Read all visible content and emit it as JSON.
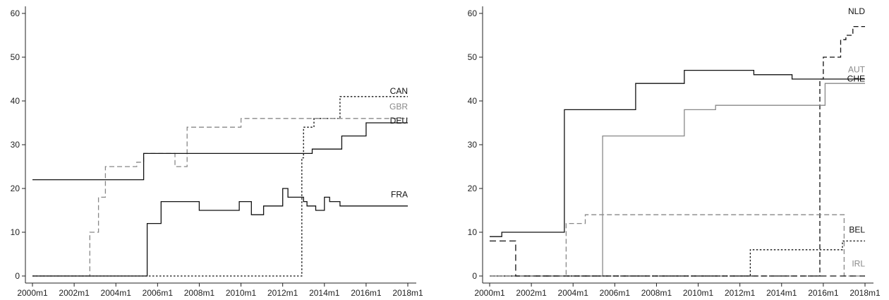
{
  "chart_data": [
    {
      "type": "line",
      "step": true,
      "title": "",
      "xlabel": "",
      "ylabel": "",
      "xlim": [
        "2000m1",
        "2018m1"
      ],
      "ylim": [
        0,
        60
      ],
      "x_ticks": [
        "2000m1",
        "2002m1",
        "2004m1",
        "2006m1",
        "2008m1",
        "2010m1",
        "2012m1",
        "2014m1",
        "2016m1",
        "2018m1"
      ],
      "y_ticks": [
        0,
        10,
        20,
        30,
        40,
        50,
        60
      ],
      "grid": false,
      "legend": "none",
      "series": [
        {
          "name": "CAN",
          "color": "#111111",
          "dash": "dotted",
          "points": [
            [
              "2000m1",
              0
            ],
            [
              "2012m12",
              0
            ],
            [
              "2012m12",
              27
            ],
            [
              "2013m1",
              27
            ],
            [
              "2013m1",
              34
            ],
            [
              "2013m7",
              34
            ],
            [
              "2013m7",
              36
            ],
            [
              "2014m10",
              36
            ],
            [
              "2014m10",
              41
            ],
            [
              "2018m1",
              41
            ]
          ]
        },
        {
          "name": "GBR",
          "color": "#888888",
          "dash": "dashed",
          "points": [
            [
              "2000m1",
              0
            ],
            [
              "2002m10",
              0
            ],
            [
              "2002m10",
              10
            ],
            [
              "2003m3",
              10
            ],
            [
              "2003m3",
              18
            ],
            [
              "2003m7",
              18
            ],
            [
              "2003m7",
              25
            ],
            [
              "2005m1",
              25
            ],
            [
              "2005m1",
              26
            ],
            [
              "2005m5",
              26
            ],
            [
              "2005m5",
              28
            ],
            [
              "2006m9",
              28
            ],
            [
              "2006m9",
              28
            ],
            [
              "2006m11",
              28
            ],
            [
              "2006m11",
              25
            ],
            [
              "2007m6",
              25
            ],
            [
              "2007m6",
              34
            ],
            [
              "2010m1",
              34
            ],
            [
              "2010m1",
              36
            ],
            [
              "2018m1",
              36
            ]
          ]
        },
        {
          "name": "DEU",
          "color": "#111111",
          "dash": "solid",
          "points": [
            [
              "2000m1",
              22
            ],
            [
              "2005m5",
              22
            ],
            [
              "2005m5",
              28
            ],
            [
              "2013m1",
              28
            ],
            [
              "2013m1",
              28
            ],
            [
              "2013m6",
              28
            ],
            [
              "2013m6",
              29
            ],
            [
              "2014m11",
              29
            ],
            [
              "2014m11",
              32
            ],
            [
              "2016m1",
              32
            ],
            [
              "2016m1",
              35
            ],
            [
              "2018m1",
              35
            ]
          ]
        },
        {
          "name": "FRA",
          "color": "#111111",
          "dash": "solid",
          "points": [
            [
              "2000m1",
              0
            ],
            [
              "2005m7",
              0
            ],
            [
              "2005m7",
              12
            ],
            [
              "2006m3",
              12
            ],
            [
              "2006m3",
              17
            ],
            [
              "2008m1",
              17
            ],
            [
              "2008m1",
              15
            ],
            [
              "2009m12",
              15
            ],
            [
              "2009m12",
              17
            ],
            [
              "2010m7",
              17
            ],
            [
              "2010m7",
              14
            ],
            [
              "2011m2",
              14
            ],
            [
              "2011m2",
              16
            ],
            [
              "2012m1",
              16
            ],
            [
              "2012m1",
              20
            ],
            [
              "2012m4",
              20
            ],
            [
              "2012m4",
              18
            ],
            [
              "2013m1",
              18
            ],
            [
              "2013m1",
              17
            ],
            [
              "2013m3",
              17
            ],
            [
              "2013m3",
              16
            ],
            [
              "2013m8",
              16
            ],
            [
              "2013m8",
              15
            ],
            [
              "2014m1",
              15
            ],
            [
              "2014m1",
              18
            ],
            [
              "2014m4",
              18
            ],
            [
              "2014m4",
              17
            ],
            [
              "2014m10",
              17
            ],
            [
              "2014m10",
              16
            ],
            [
              "2018m1",
              16
            ]
          ]
        }
      ]
    },
    {
      "type": "line",
      "step": true,
      "title": "",
      "xlabel": "",
      "ylabel": "",
      "xlim": [
        "2000m1",
        "2018m1"
      ],
      "ylim": [
        0,
        60
      ],
      "x_ticks": [
        "2000m1",
        "2002m1",
        "2004m1",
        "2006m1",
        "2008m1",
        "2010m1",
        "2012m1",
        "2014m1",
        "2016m1",
        "2018m1"
      ],
      "y_ticks": [
        0,
        10,
        20,
        30,
        40,
        50,
        60
      ],
      "grid": false,
      "legend": "none",
      "series": [
        {
          "name": "NLD",
          "color": "#111111",
          "dash": "dashed",
          "points": [
            [
              "2000m1",
              0
            ],
            [
              "2015m11",
              0
            ],
            [
              "2015m11",
              45
            ],
            [
              "2016m1",
              45
            ],
            [
              "2016m1",
              50
            ],
            [
              "2016m11",
              50
            ],
            [
              "2016m11",
              54
            ],
            [
              "2017m2",
              54
            ],
            [
              "2017m2",
              55
            ],
            [
              "2017m6",
              55
            ],
            [
              "2017m6",
              57
            ],
            [
              "2018m1",
              57
            ]
          ]
        },
        {
          "name": "AUT",
          "color": "#888888",
          "dash": "solid",
          "points": [
            [
              "2000m1",
              0
            ],
            [
              "2005m6",
              0
            ],
            [
              "2005m6",
              32
            ],
            [
              "2009m5",
              32
            ],
            [
              "2009m5",
              38
            ],
            [
              "2010m11",
              38
            ],
            [
              "2010m11",
              39
            ],
            [
              "2016m2",
              39
            ],
            [
              "2016m2",
              44
            ],
            [
              "2018m1",
              44
            ]
          ]
        },
        {
          "name": "CHE",
          "color": "#111111",
          "dash": "solid",
          "points": [
            [
              "2000m1",
              9
            ],
            [
              "2000m8",
              9
            ],
            [
              "2000m8",
              10
            ],
            [
              "2003m8",
              10
            ],
            [
              "2003m8",
              38
            ],
            [
              "2007m1",
              38
            ],
            [
              "2007m1",
              44
            ],
            [
              "2009m5",
              44
            ],
            [
              "2009m5",
              47
            ],
            [
              "2012m9",
              47
            ],
            [
              "2012m9",
              46
            ],
            [
              "2014m7",
              46
            ],
            [
              "2014m7",
              45
            ],
            [
              "2018m1",
              45
            ]
          ]
        },
        {
          "name": "BEL",
          "color": "#111111",
          "dash": "dotted",
          "points": [
            [
              "2000m1",
              0
            ],
            [
              "2012m7",
              0
            ],
            [
              "2012m7",
              6
            ],
            [
              "2016m12",
              6
            ],
            [
              "2016m12",
              8
            ],
            [
              "2018m1",
              8
            ]
          ]
        },
        {
          "name": "IRL",
          "color": "#888888",
          "dash": "dashed",
          "points": [
            [
              "2000m1",
              0
            ],
            [
              "2003m9",
              0
            ],
            [
              "2003m9",
              12
            ],
            [
              "2004m8",
              12
            ],
            [
              "2004m8",
              14
            ],
            [
              "2017m1",
              14
            ],
            [
              "2017m1",
              0
            ],
            [
              "2018m1",
              0
            ]
          ]
        },
        {
          "name": "",
          "color": "#111111",
          "dash": "longdash",
          "points": [
            [
              "2000m1",
              8
            ],
            [
              "2001m4",
              8
            ],
            [
              "2001m4",
              0
            ],
            [
              "2018m1",
              0
            ]
          ]
        }
      ]
    }
  ],
  "labels": [
    {
      "text": "CAN",
      "color": "#111111"
    },
    {
      "text": "GBR",
      "color": "#888888"
    },
    {
      "text": "DEU",
      "color": "#111111"
    },
    {
      "text": "FRA",
      "color": "#111111"
    },
    {
      "text": "NLD",
      "color": "#111111"
    },
    {
      "text": "AUT",
      "color": "#888888"
    },
    {
      "text": "CHE",
      "color": "#111111"
    },
    {
      "text": "BEL",
      "color": "#111111"
    },
    {
      "text": "IRL",
      "color": "#888888"
    }
  ]
}
